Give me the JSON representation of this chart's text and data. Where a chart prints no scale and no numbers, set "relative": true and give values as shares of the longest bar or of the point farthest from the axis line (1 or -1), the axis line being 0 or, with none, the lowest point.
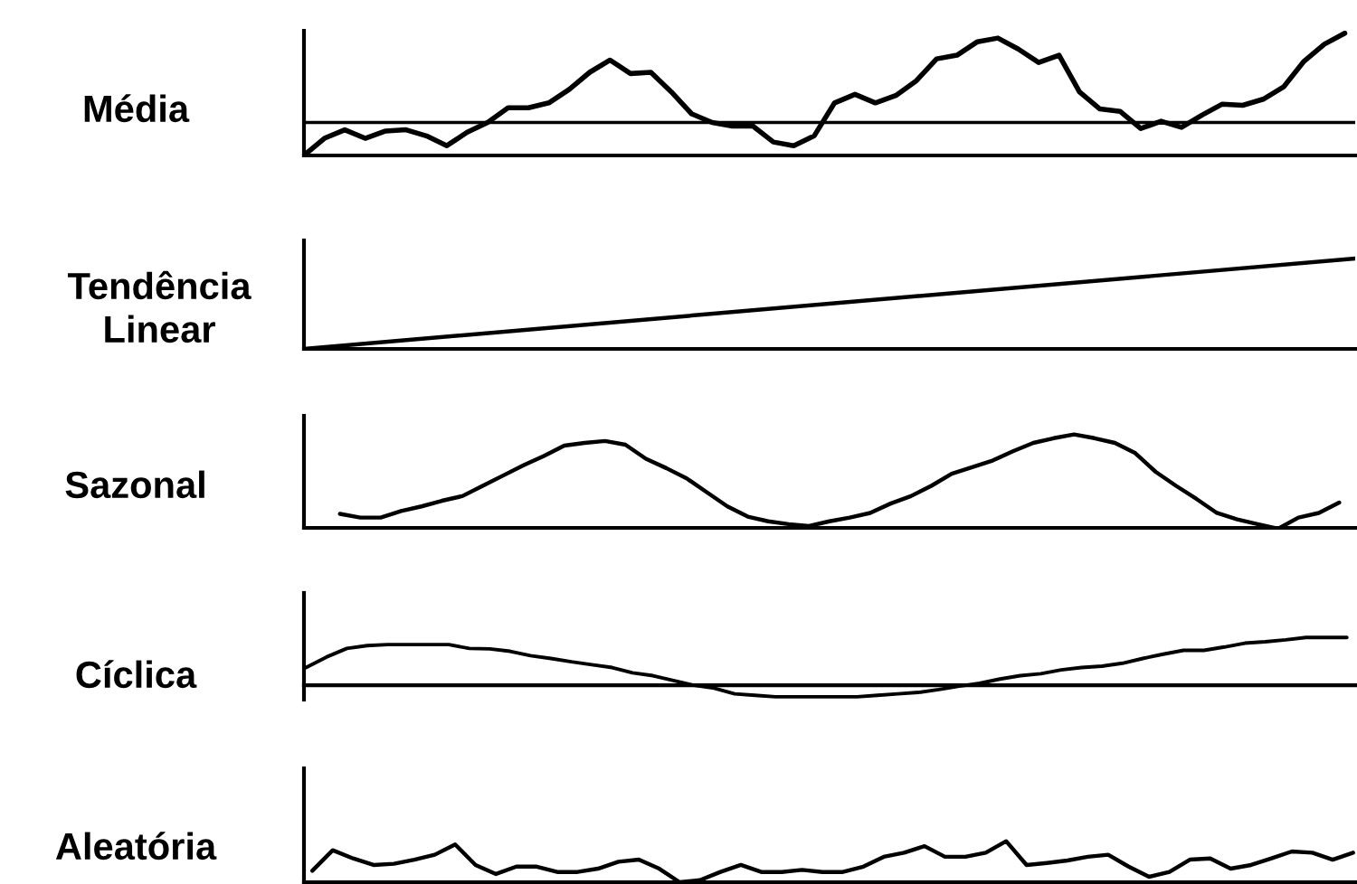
{
  "chart_data": [
    {
      "type": "line",
      "title": "Média",
      "relative": true,
      "color": "#000000",
      "categories": [
        null,
        null,
        null,
        null,
        null,
        null,
        null,
        null,
        null,
        null,
        null,
        null,
        null,
        null,
        null,
        null,
        null,
        null,
        null,
        null,
        null,
        null,
        null,
        null,
        null,
        null,
        null,
        null,
        null,
        null,
        null,
        null,
        null,
        null,
        null,
        null,
        null,
        null,
        null,
        null,
        null,
        null,
        null,
        null,
        null,
        null,
        null,
        null,
        null,
        null,
        null,
        null
      ],
      "values": [
        0,
        0.14,
        0.21,
        0.14,
        0.2,
        0.21,
        0.16,
        0.08,
        0.19,
        0.27,
        0.39,
        0.39,
        0.43,
        0.54,
        0.68,
        0.78,
        0.67,
        0.68,
        0.52,
        0.34,
        0.27,
        0.24,
        0.24,
        0.11,
        0.08,
        0.16,
        0.43,
        0.5,
        0.43,
        0.49,
        0.61,
        0.79,
        0.82,
        0.93,
        0.96,
        0.87,
        0.76,
        0.82,
        0.52,
        0.38,
        0.36,
        0.22,
        0.28,
        0.23,
        0.33,
        0.42,
        0.41,
        0.46,
        0.56,
        0.77,
        0.91,
        1
      ],
      "ref_lines": [
        {
          "axis": "y",
          "value": 0.27
        }
      ]
    },
    {
      "type": "line",
      "title": "Tendência\nLinear",
      "relative": true,
      "color": "#000000",
      "categories": [
        null,
        null
      ],
      "values": [
        0,
        1
      ]
    },
    {
      "type": "line",
      "title": "Sazonal",
      "relative": true,
      "color": "#000000",
      "categories": [
        null,
        null,
        null,
        null,
        null,
        null,
        null,
        null,
        null,
        null,
        null,
        null,
        null,
        null,
        null,
        null,
        null,
        null,
        null,
        null,
        null,
        null,
        null,
        null,
        null,
        null,
        null,
        null,
        null,
        null,
        null,
        null,
        null,
        null,
        null,
        null,
        null,
        null,
        null,
        null,
        null,
        null,
        null,
        null,
        null,
        null,
        null,
        null,
        null,
        null
      ],
      "values": [
        0.15,
        0.11,
        0.11,
        0.18,
        0.23,
        0.29,
        0.34,
        0.45,
        0.56,
        0.67,
        0.77,
        0.88,
        0.91,
        0.93,
        0.89,
        0.74,
        0.64,
        0.53,
        0.38,
        0.23,
        0.12,
        0.07,
        0.04,
        0.02,
        0.07,
        0.11,
        0.16,
        0.26,
        0.34,
        0.45,
        0.58,
        0.65,
        0.72,
        0.82,
        0.91,
        0.96,
        1,
        0.96,
        0.91,
        0.8,
        0.6,
        0.45,
        0.31,
        0.16,
        0.09,
        0.04,
        -0.01,
        0.11,
        0.16,
        0.27
      ]
    },
    {
      "type": "line",
      "title": "Cíclica",
      "relative": true,
      "color": "#000000",
      "categories": [
        null,
        null,
        null,
        null,
        null,
        null,
        null,
        null,
        null,
        null,
        null,
        null,
        null,
        null,
        null,
        null,
        null,
        null,
        null,
        null,
        null,
        null,
        null,
        null,
        null,
        null,
        null,
        null,
        null,
        null,
        null,
        null,
        null,
        null,
        null,
        null,
        null,
        null,
        null,
        null,
        null,
        null,
        null,
        null,
        null,
        null,
        null,
        null,
        null,
        null,
        null,
        null
      ],
      "values": [
        0.37,
        0.59,
        0.77,
        0.83,
        0.85,
        0.85,
        0.85,
        0.85,
        0.77,
        0.76,
        0.71,
        0.62,
        0.56,
        0.49,
        0.43,
        0.37,
        0.26,
        0.2,
        0.1,
        0,
        -0.06,
        -0.18,
        -0.21,
        -0.24,
        -0.24,
        -0.24,
        -0.24,
        -0.24,
        -0.21,
        -0.18,
        -0.15,
        -0.09,
        -0.02,
        0.04,
        0.13,
        0.2,
        0.24,
        0.32,
        0.37,
        0.4,
        0.46,
        0.56,
        0.65,
        0.73,
        0.73,
        0.8,
        0.88,
        0.91,
        0.95,
        1,
        1,
        1
      ]
    },
    {
      "type": "line",
      "title": "Aleatória",
      "relative": true,
      "color": "#000000",
      "categories": [
        null,
        null,
        null,
        null,
        null,
        null,
        null,
        null,
        null,
        null,
        null,
        null,
        null,
        null,
        null,
        null,
        null,
        null,
        null,
        null,
        null,
        null,
        null,
        null,
        null,
        null,
        null,
        null,
        null,
        null,
        null,
        null,
        null,
        null,
        null,
        null,
        null,
        null,
        null,
        null,
        null,
        null,
        null,
        null,
        null,
        null,
        null,
        null,
        null,
        null,
        null,
        null
      ],
      "values": [
        0.28,
        0.78,
        0.58,
        0.42,
        0.45,
        0.55,
        0.67,
        0.92,
        0.42,
        0.2,
        0.38,
        0.38,
        0.25,
        0.25,
        0.33,
        0.5,
        0.55,
        0.33,
        0,
        0.05,
        0.25,
        0.42,
        0.25,
        0.25,
        0.3,
        0.25,
        0.25,
        0.38,
        0.62,
        0.72,
        0.88,
        0.62,
        0.62,
        0.72,
        1,
        0.42,
        0.47,
        0.53,
        0.62,
        0.67,
        0.38,
        0.13,
        0.25,
        0.55,
        0.58,
        0.33,
        0.42,
        0.58,
        0.75,
        0.72,
        0.55,
        0.72
      ]
    }
  ]
}
